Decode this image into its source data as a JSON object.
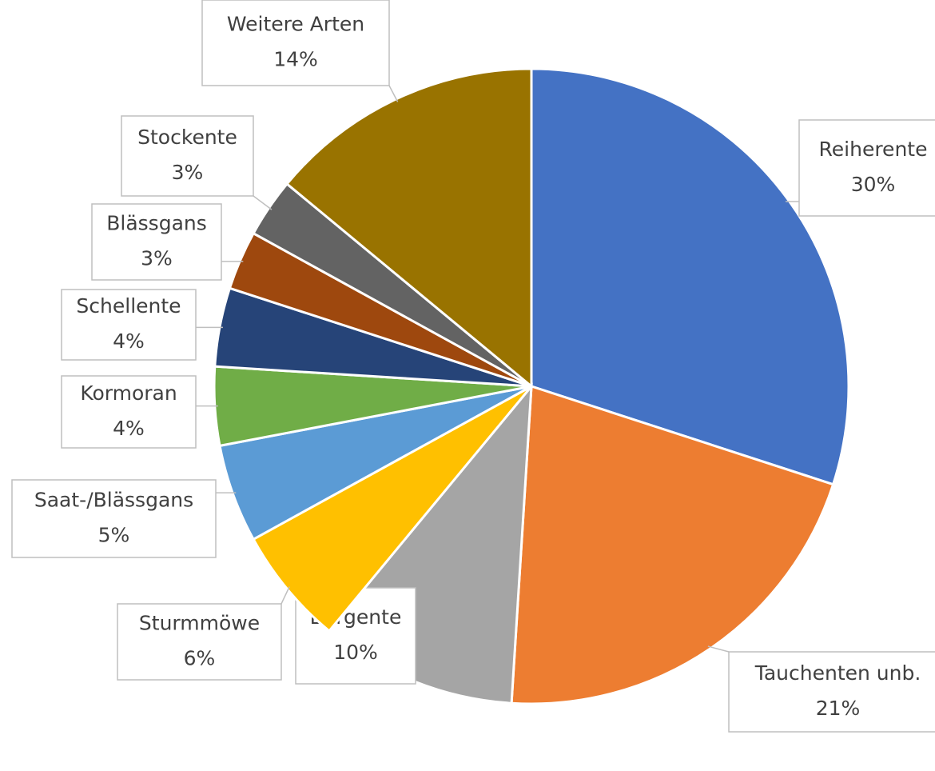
{
  "chart_data": {
    "type": "pie",
    "categories": [
      "Reiherente",
      "Tauchenten unb.",
      "Bergente",
      "Sturmmöwe",
      "Saat-/Blässgans",
      "Kormoran",
      "Schellente",
      "Blässgans",
      "Stockente",
      "Weitere Arten"
    ],
    "values": [
      30,
      21,
      10,
      6,
      5,
      4,
      4,
      3,
      3,
      14
    ],
    "value_labels": [
      "30%",
      "21%",
      "10%",
      "6%",
      "5%",
      "4%",
      "4%",
      "3%",
      "3%",
      "14%"
    ],
    "colors": [
      "#4472c4",
      "#ed7d31",
      "#a5a5a5",
      "#ffc000",
      "#5b9bd5",
      "#70ad47",
      "#264478",
      "#9e480e",
      "#636363",
      "#997300"
    ]
  }
}
